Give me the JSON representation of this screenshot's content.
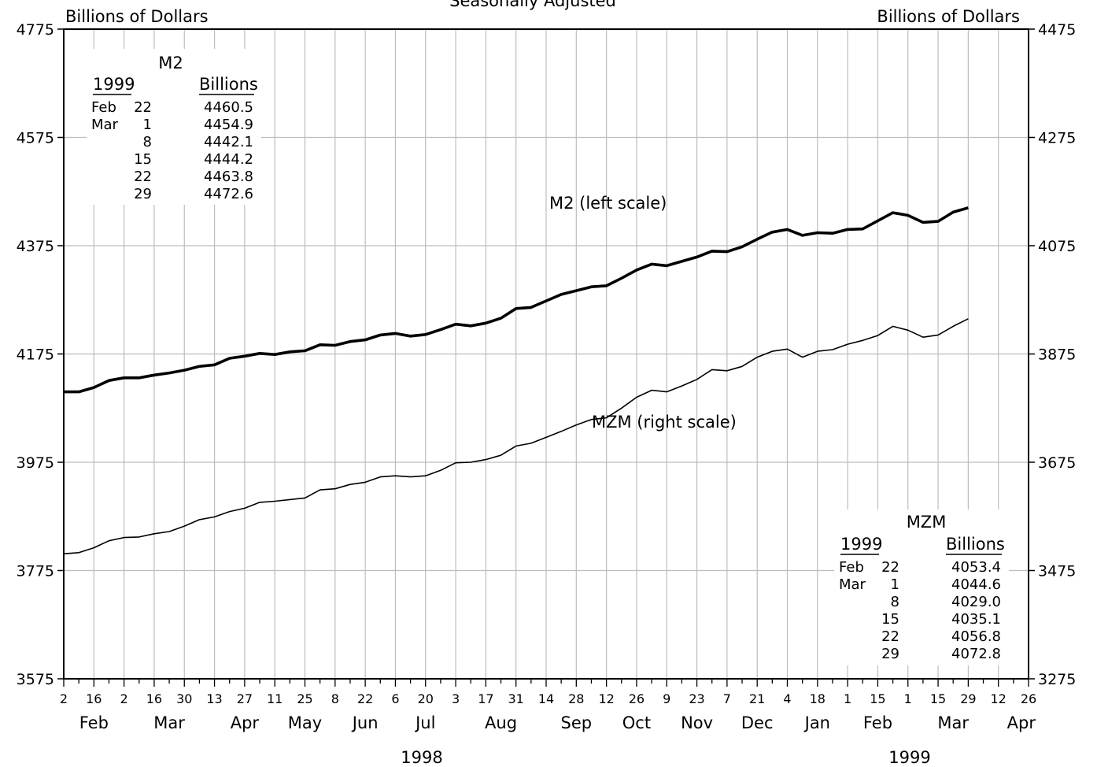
{
  "header": {
    "title_fragment": "Seasonally Adjusted",
    "left_axis_unit": "Billions of Dollars",
    "right_axis_unit": "Billions of Dollars"
  },
  "chart_data": {
    "type": "line",
    "title": "Seasonally Adjusted",
    "left_axis": {
      "label": "Billions of Dollars",
      "range": [
        3575,
        4775
      ],
      "ticks": [
        "3575",
        "3775",
        "3975",
        "4175",
        "4375",
        "4575",
        "4775"
      ]
    },
    "right_axis": {
      "label": "Billions of Dollars",
      "range": [
        3275,
        4475
      ],
      "ticks": [
        "3275",
        "3475",
        "3675",
        "3875",
        "4075",
        "4275",
        "4475"
      ]
    },
    "grid": true,
    "x_start_date": "1998-02-02",
    "x_end_date": "1999-04-26",
    "x_tick_labels": [
      "2",
      "16",
      "2",
      "16",
      "30",
      "13",
      "27",
      "11",
      "25",
      "8",
      "22",
      "6",
      "20",
      "3",
      "17",
      "31",
      "14",
      "28",
      "12",
      "26",
      "9",
      "23",
      "7",
      "21",
      "4",
      "18",
      "1",
      "15",
      "1",
      "15",
      "29",
      "12",
      "26"
    ],
    "month_labels": [
      "Feb",
      "Mar",
      "Apr",
      "May",
      "Jun",
      "Jul",
      "Aug",
      "Sep",
      "Oct",
      "Nov",
      "Dec",
      "Jan",
      "Feb",
      "Mar",
      "Apr"
    ],
    "year_labels": [
      "1998",
      "1999"
    ],
    "series": [
      {
        "name": "M2 (left scale)",
        "axis": "left",
        "values": [
          4105,
          4105,
          4113,
          4126,
          4131,
          4131,
          4136,
          4140,
          4145,
          4152,
          4155,
          4167,
          4171,
          4176,
          4174,
          4179,
          4181,
          4192,
          4191,
          4198,
          4201,
          4210,
          4213,
          4208,
          4211,
          4220,
          4230,
          4227,
          4232,
          4241,
          4259,
          4261,
          4273,
          4285,
          4292,
          4299,
          4301,
          4315,
          4330,
          4341,
          4338,
          4346,
          4354,
          4365,
          4364,
          4373,
          4387,
          4400,
          4405,
          4394,
          4399,
          4398,
          4405,
          4406,
          4421,
          4436,
          4431,
          4418,
          4420,
          4437,
          4445
        ],
        "summary_table": {
          "title": "M2",
          "col_date": "1999",
          "col_value": "Billions",
          "rows": [
            {
              "month": "Feb",
              "day": "22",
              "value": "4460.5"
            },
            {
              "month": "Mar",
              "day": "1",
              "value": "4454.9"
            },
            {
              "month": "",
              "day": "8",
              "value": "4442.1"
            },
            {
              "month": "",
              "day": "15",
              "value": "4444.2"
            },
            {
              "month": "",
              "day": "22",
              "value": "4463.8"
            },
            {
              "month": "",
              "day": "29",
              "value": "4472.6"
            }
          ]
        }
      },
      {
        "name": "MZM (right scale)",
        "axis": "right",
        "values": [
          3506,
          3508,
          3517,
          3530,
          3536,
          3537,
          3543,
          3547,
          3557,
          3569,
          3574,
          3584,
          3590,
          3601,
          3603,
          3606,
          3609,
          3624,
          3626,
          3634,
          3638,
          3648,
          3650,
          3648,
          3650,
          3660,
          3674,
          3675,
          3680,
          3688,
          3705,
          3710,
          3721,
          3732,
          3744,
          3754,
          3757,
          3775,
          3795,
          3808,
          3805,
          3816,
          3828,
          3846,
          3844,
          3852,
          3869,
          3880,
          3884,
          3869,
          3880,
          3883,
          3893,
          3900,
          3909,
          3926,
          3919,
          3906,
          3910,
          3926,
          3940
        ],
        "summary_table": {
          "title": "MZM",
          "col_date": "1999",
          "col_value": "Billions",
          "rows": [
            {
              "month": "Feb",
              "day": "22",
              "value": "4053.4"
            },
            {
              "month": "Mar",
              "day": "1",
              "value": "4044.6"
            },
            {
              "month": "",
              "day": "8",
              "value": "4029.0"
            },
            {
              "month": "",
              "day": "15",
              "value": "4035.1"
            },
            {
              "month": "",
              "day": "22",
              "value": "4056.8"
            },
            {
              "month": "",
              "day": "29",
              "value": "4072.8"
            }
          ]
        }
      }
    ],
    "annotations": [
      {
        "text": "M2 (left scale)",
        "series": 0
      },
      {
        "text": "MZM (right scale)",
        "series": 1
      }
    ]
  }
}
